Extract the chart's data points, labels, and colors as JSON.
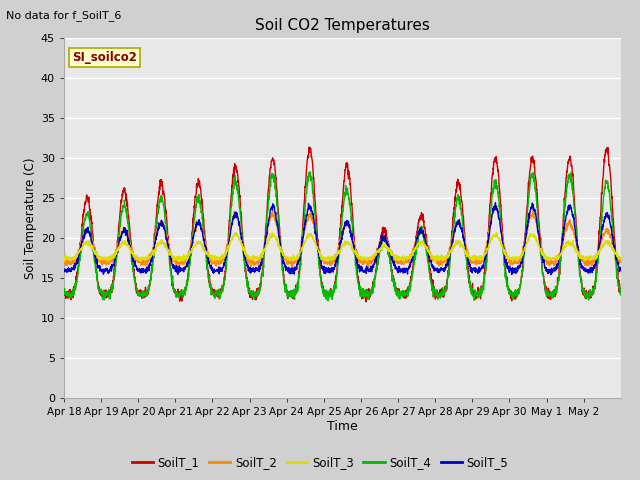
{
  "title": "Soil CO2 Temperatures",
  "xlabel": "Time",
  "ylabel": "Soil Temperature (C)",
  "ylim": [
    0,
    45
  ],
  "yticks": [
    0,
    5,
    10,
    15,
    20,
    25,
    30,
    35,
    40,
    45
  ],
  "annotation_text": "No data for f_SoilT_6",
  "station_label": "SI_soilco2",
  "date_labels": [
    "Apr 18",
    "Apr 19",
    "Apr 20",
    "Apr 21",
    "Apr 22",
    "Apr 23",
    "Apr 24",
    "Apr 25",
    "Apr 26",
    "Apr 27",
    "Apr 28",
    "Apr 29",
    "Apr 30",
    "May 1",
    "May 2"
  ],
  "series_names": [
    "SoilT_1",
    "SoilT_2",
    "SoilT_3",
    "SoilT_4",
    "SoilT_5"
  ],
  "series_colors": [
    "#cc0000",
    "#ff8800",
    "#dddd00",
    "#00bb00",
    "#0000cc"
  ],
  "fig_bg_color": "#d0d0d0",
  "plot_bg_color": "#e8e8e8",
  "grid_color": "#ffffff",
  "n_days": 15,
  "figsize": [
    6.4,
    4.8
  ],
  "dpi": 100
}
